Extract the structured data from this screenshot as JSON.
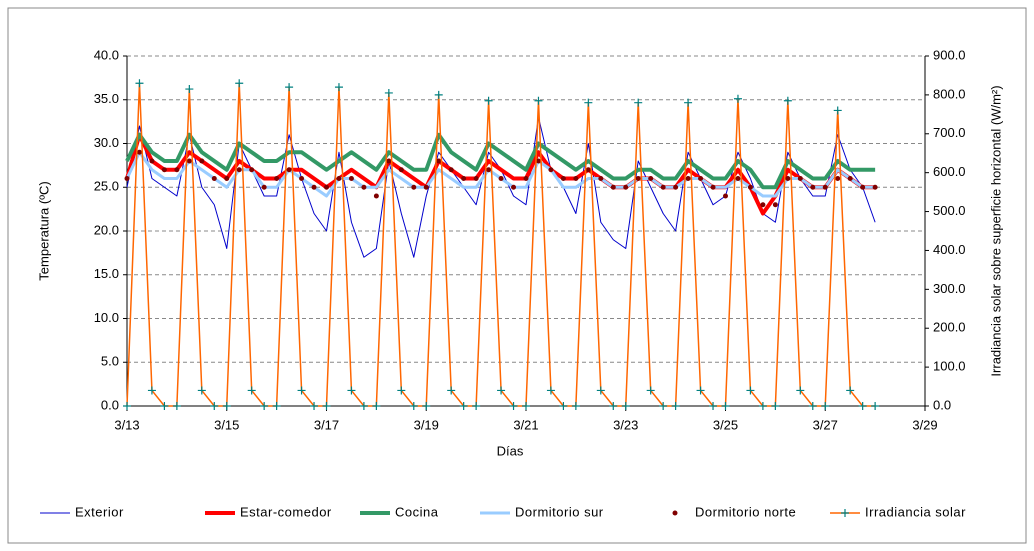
{
  "chart_data": {
    "type": "line",
    "x_label": "Días",
    "y_label": "Temperatura (ºC)",
    "y2_label": "Irradiancia solar sobre superficie horizontal (W/m²)",
    "x": [
      13,
      13.25,
      13.5,
      13.75,
      14,
      14.25,
      14.5,
      14.75,
      15,
      15.25,
      15.5,
      15.75,
      16,
      16.25,
      16.5,
      16.75,
      17,
      17.25,
      17.5,
      17.75,
      18,
      18.25,
      18.5,
      18.75,
      19,
      19.25,
      19.5,
      19.75,
      20,
      20.25,
      20.5,
      20.75,
      21,
      21.25,
      21.5,
      21.75,
      22,
      22.25,
      22.5,
      22.75,
      23,
      23.25,
      23.5,
      23.75,
      24,
      24.25,
      24.5,
      24.75,
      25,
      25.25,
      25.5,
      25.75,
      26,
      26.25,
      26.5,
      26.75,
      27,
      27.25,
      27.5,
      27.75,
      28
    ],
    "xlim": [
      13,
      29
    ],
    "xticks": [
      {
        "value": 13,
        "label": "3/13"
      },
      {
        "value": 15,
        "label": "3/15"
      },
      {
        "value": 17,
        "label": "3/17"
      },
      {
        "value": 19,
        "label": "3/19"
      },
      {
        "value": 21,
        "label": "3/21"
      },
      {
        "value": 23,
        "label": "3/23"
      },
      {
        "value": 25,
        "label": "3/25"
      },
      {
        "value": 27,
        "label": "3/27"
      },
      {
        "value": 29,
        "label": "3/29"
      }
    ],
    "ylim": [
      0,
      40
    ],
    "yticks": [
      {
        "value": 0,
        "label": "0.0"
      },
      {
        "value": 5,
        "label": "5.0"
      },
      {
        "value": 10,
        "label": "10.0"
      },
      {
        "value": 15,
        "label": "15.0"
      },
      {
        "value": 20,
        "label": "20.0"
      },
      {
        "value": 25,
        "label": "25.0"
      },
      {
        "value": 30,
        "label": "30.0"
      },
      {
        "value": 35,
        "label": "35.0"
      },
      {
        "value": 40,
        "label": "40.0"
      }
    ],
    "y2lim": [
      0,
      900
    ],
    "y2ticks": [
      {
        "value": 0,
        "label": "0.0"
      },
      {
        "value": 100,
        "label": "100.0"
      },
      {
        "value": 200,
        "label": "200.0"
      },
      {
        "value": 300,
        "label": "300.0"
      },
      {
        "value": 400,
        "label": "400.0"
      },
      {
        "value": 500,
        "label": "500.0"
      },
      {
        "value": 600,
        "label": "600.0"
      },
      {
        "value": 700,
        "label": "700.0"
      },
      {
        "value": 800,
        "label": "800.0"
      },
      {
        "value": 900,
        "label": "900.0"
      }
    ],
    "grid": true,
    "legend": "bottom",
    "series": [
      {
        "name": "Exterior",
        "color": "#0000cc",
        "line_width": 1,
        "marker": "none",
        "values": [
          25,
          32,
          26,
          25,
          24,
          31,
          25,
          23,
          18,
          30,
          27,
          24,
          24,
          31,
          26,
          22,
          20,
          29,
          21,
          17,
          18,
          28,
          22,
          17,
          24,
          29,
          27,
          25,
          23,
          29,
          27,
          24,
          23,
          33,
          27,
          25,
          22,
          30,
          21,
          19,
          18,
          28,
          25,
          22,
          20,
          29,
          26,
          23,
          24,
          29,
          26,
          22,
          21,
          29,
          26,
          24,
          24,
          31,
          27,
          25,
          21
        ]
      },
      {
        "name": "Estar-comedor",
        "color": "#ff0000",
        "line_width": 4,
        "marker": "none",
        "values": [
          26,
          31,
          28,
          27,
          27,
          29,
          28,
          27,
          26,
          28,
          27,
          26,
          26,
          27,
          27,
          26,
          25,
          26,
          27,
          26,
          25,
          28,
          27,
          26,
          25,
          28,
          27,
          26,
          26,
          28,
          27,
          26,
          26,
          29,
          27,
          26,
          26,
          27,
          26,
          25,
          25,
          26,
          26,
          25,
          25,
          27,
          26,
          25,
          25,
          27,
          25,
          22,
          24,
          27,
          26,
          25,
          25,
          27,
          26,
          25,
          25
        ]
      },
      {
        "name": "Cocina",
        "color": "#339966",
        "line_width": 4,
        "marker": "none",
        "values": [
          28,
          31,
          29,
          28,
          28,
          31,
          29,
          28,
          27,
          30,
          29,
          28,
          28,
          29,
          29,
          28,
          27,
          28,
          29,
          28,
          27,
          29,
          28,
          27,
          27,
          31,
          29,
          28,
          27,
          30,
          29,
          28,
          27,
          30,
          29,
          28,
          27,
          28,
          27,
          26,
          26,
          27,
          27,
          26,
          26,
          28,
          27,
          26,
          26,
          28,
          27,
          25,
          25,
          28,
          27,
          26,
          26,
          28,
          27,
          27,
          27
        ]
      },
      {
        "name": "Dormitorio sur",
        "color": "#99ccff",
        "line_width": 3,
        "marker": "none",
        "values": [
          26,
          29,
          27,
          26,
          26,
          28,
          27,
          26,
          25,
          27,
          27,
          25,
          25,
          27,
          26,
          25,
          24,
          26,
          26,
          25,
          25,
          27,
          26,
          25,
          25,
          27,
          26,
          25,
          25,
          27,
          26,
          25,
          25,
          28,
          27,
          25,
          25,
          26,
          26,
          25,
          25,
          26,
          26,
          25,
          25,
          26,
          26,
          25,
          25,
          26,
          25,
          24,
          24,
          26,
          26,
          25,
          25,
          27,
          26,
          25,
          25
        ]
      },
      {
        "name": "Dormitorio norte",
        "color": "#800000",
        "line_width": 0,
        "marker": "dot",
        "values": [
          26,
          29,
          28,
          27,
          27,
          28,
          28,
          26,
          26,
          27,
          27,
          25,
          26,
          27,
          26,
          25,
          25,
          26,
          26,
          25,
          24,
          28,
          27,
          25,
          25,
          28,
          27,
          26,
          26,
          27,
          26,
          25,
          26,
          28,
          27,
          26,
          26,
          27,
          26,
          25,
          25,
          26,
          26,
          25,
          25,
          26,
          26,
          25,
          24,
          26,
          25,
          23,
          23,
          26,
          26,
          25,
          25,
          26,
          26,
          25,
          25
        ]
      },
      {
        "name": "Irradiancia solar",
        "color": "#ff6600",
        "marker_color": "#008080",
        "line_width": 1.5,
        "marker": "plus",
        "axis": "y2",
        "values": [
          0,
          830,
          40,
          0,
          0,
          815,
          40,
          0,
          0,
          830,
          40,
          0,
          0,
          820,
          40,
          0,
          0,
          820,
          40,
          0,
          0,
          805,
          40,
          0,
          0,
          800,
          40,
          0,
          0,
          785,
          40,
          0,
          0,
          785,
          40,
          0,
          0,
          780,
          40,
          0,
          0,
          780,
          40,
          0,
          0,
          780,
          40,
          0,
          0,
          790,
          40,
          0,
          0,
          785,
          40,
          0,
          0,
          760,
          40,
          0,
          0
        ]
      }
    ]
  }
}
